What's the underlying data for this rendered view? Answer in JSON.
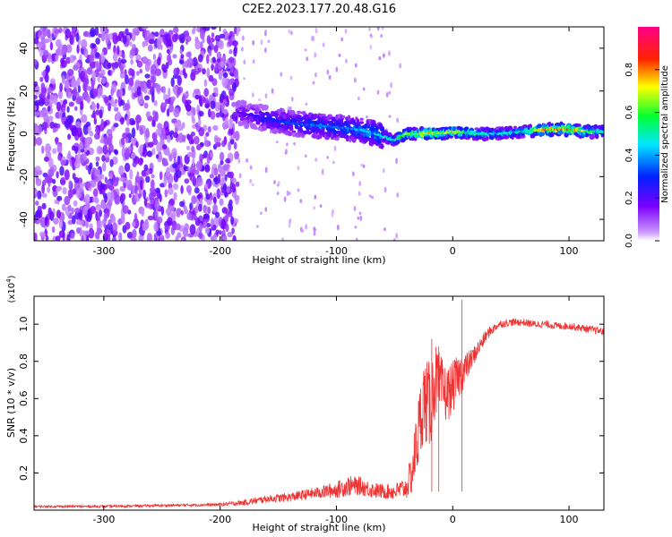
{
  "title": "C2E2.2023.177.20.48.G16",
  "colors": {
    "spectrum_purple": "#7a1cff",
    "spectrum_light": "#d9b8ff",
    "snr_line": "#ee3333",
    "axis": "#000000"
  },
  "chart_data": [
    {
      "type": "heatmap",
      "title": "C2E2.2023.177.20.48.G16",
      "xlabel": "Height of straight line (km)",
      "ylabel": "Frequency (Hz)",
      "xlim": [
        -360,
        130
      ],
      "ylim": [
        -50,
        50
      ],
      "xticks": [
        -300,
        -200,
        -100,
        0,
        100
      ],
      "yticks": [
        -40,
        -20,
        0,
        20,
        40
      ],
      "xtick_labels": [
        "-300",
        "-200",
        "-100",
        "0",
        "100"
      ],
      "ytick_labels": [
        "-40",
        "-20",
        "0",
        "20",
        "40"
      ],
      "grid": false,
      "noise_region_end_km": -185,
      "signal_track": {
        "x": [
          -185,
          -160,
          -140,
          -120,
          -100,
          -80,
          -60,
          -50,
          -40,
          -30,
          -20,
          -10,
          0,
          20,
          40,
          60,
          80,
          100,
          120,
          130
        ],
        "y": [
          10,
          7,
          5,
          4,
          3,
          2,
          -1,
          -3,
          0,
          0,
          0.5,
          0,
          1,
          0,
          0,
          1,
          2,
          2,
          1,
          1
        ],
        "peak_amplitude": [
          0.2,
          0.3,
          0.35,
          0.4,
          0.4,
          0.45,
          0.5,
          0.55,
          0.7,
          0.75,
          0.8,
          0.7,
          0.8,
          0.55,
          0.5,
          0.55,
          0.85,
          0.9,
          0.6,
          0.55
        ]
      },
      "colorbar": {
        "label": "Normalized spectral amplitude",
        "range": [
          0,
          1
        ],
        "ticks": [
          0.0,
          0.2,
          0.4,
          0.6,
          0.8
        ],
        "tick_labels": [
          "0.0",
          "0.2",
          "0.4",
          "0.6",
          "0.8"
        ]
      }
    },
    {
      "type": "line",
      "xlabel": "Height of straight line (km)",
      "ylabel": "SNR (10 * v/v)",
      "scale_label": "(x10",
      "scale_exponent": "4",
      "scale_close": ")",
      "xlim": [
        -360,
        130
      ],
      "ylim": [
        0,
        1.15
      ],
      "xticks": [
        -300,
        -200,
        -100,
        0,
        100
      ],
      "yticks": [
        0.2,
        0.4,
        0.6,
        0.8,
        1.0
      ],
      "xtick_labels": [
        "-300",
        "-200",
        "-100",
        "0",
        "100"
      ],
      "ytick_labels": [
        "0.2",
        "0.4",
        "0.6",
        "0.8",
        "1.0"
      ],
      "grid": false,
      "series": [
        {
          "x": [
            -360,
            -300,
            -250,
            -200,
            -180,
            -160,
            -140,
            -120,
            -100,
            -90,
            -80,
            -70,
            -60,
            -50,
            -40,
            -35,
            -30,
            -25,
            -20,
            -15,
            -10,
            -5,
            0,
            5,
            10,
            15,
            20,
            25,
            30,
            40,
            50,
            60,
            70,
            80,
            90,
            100,
            110,
            120,
            130
          ],
          "values": [
            0.02,
            0.02,
            0.025,
            0.03,
            0.04,
            0.06,
            0.07,
            0.09,
            0.11,
            0.13,
            0.13,
            0.11,
            0.1,
            0.1,
            0.12,
            0.2,
            0.4,
            0.6,
            0.55,
            0.7,
            0.65,
            0.62,
            0.66,
            0.72,
            0.75,
            0.8,
            0.85,
            0.9,
            0.95,
            1.0,
            1.01,
            1.01,
            1.0,
            1.0,
            0.99,
            0.99,
            0.98,
            0.97,
            0.96
          ],
          "noise": [
            0.006,
            0.006,
            0.007,
            0.008,
            0.015,
            0.02,
            0.025,
            0.03,
            0.045,
            0.055,
            0.05,
            0.045,
            0.04,
            0.045,
            0.06,
            0.12,
            0.2,
            0.22,
            0.25,
            0.2,
            0.18,
            0.15,
            0.14,
            0.12,
            0.1,
            0.06,
            0.05,
            0.04,
            0.03,
            0.02,
            0.02,
            0.02,
            0.02,
            0.02,
            0.02,
            0.02,
            0.02,
            0.02,
            0.02
          ]
        }
      ]
    }
  ]
}
